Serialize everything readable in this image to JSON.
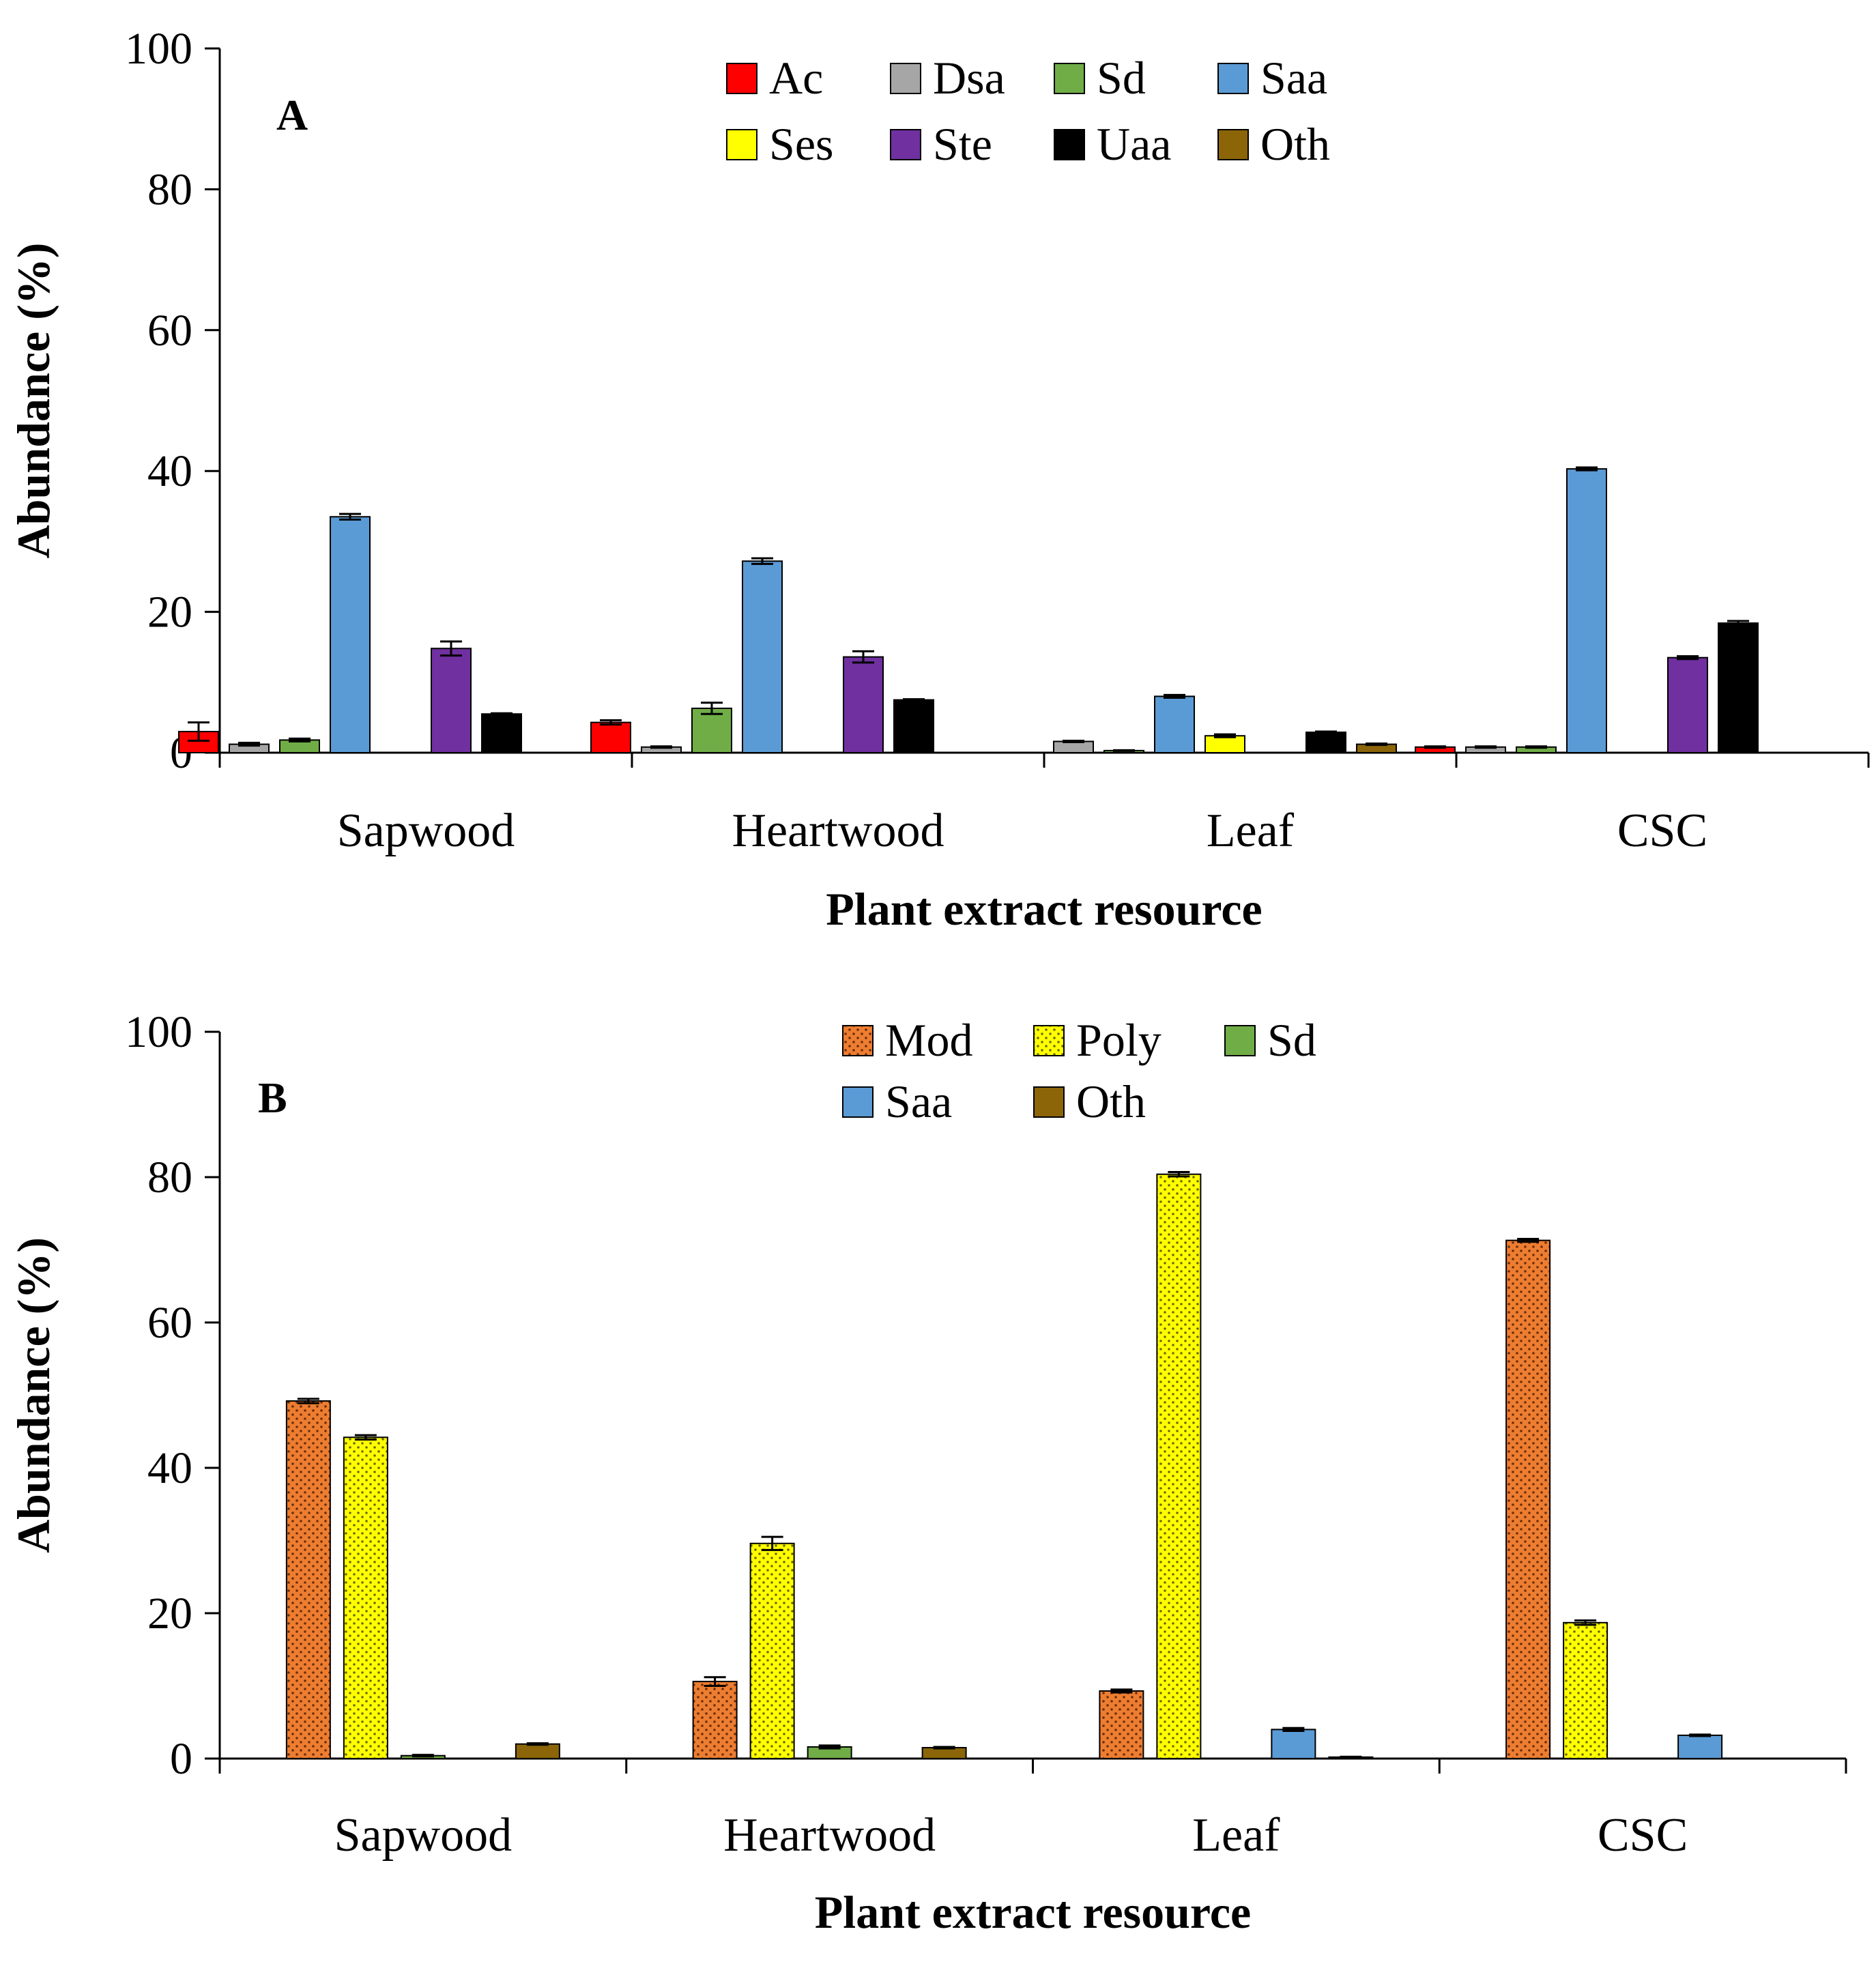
{
  "chart_data": [
    {
      "type": "bar",
      "panel_label": "A",
      "categories": [
        "Sapwood",
        "Heartwood",
        "Leaf",
        "CSC"
      ],
      "xlabel": "Plant extract resource",
      "ylabel": "Abundance (%)",
      "ylim": [
        0,
        100
      ],
      "yticks": [
        0,
        20,
        40,
        60,
        80,
        100
      ],
      "legend_position": "top-center",
      "series": [
        {
          "name": "Ac",
          "color": "#ff0000",
          "pattern": "solid",
          "values": [
            3.0,
            4.3,
            0,
            0.8
          ],
          "errors": [
            1.3,
            0.3,
            0,
            0.1
          ]
        },
        {
          "name": "Dsa",
          "color": "#a6a6a6",
          "pattern": "solid",
          "values": [
            1.2,
            0.8,
            1.6,
            0.8
          ],
          "errors": [
            0.2,
            0.1,
            0.1,
            0.1
          ]
        },
        {
          "name": "Sd",
          "color": "#70ad47",
          "pattern": "solid",
          "values": [
            1.8,
            6.3,
            0.3,
            0.8
          ],
          "errors": [
            0.2,
            0.8,
            0.05,
            0.1
          ]
        },
        {
          "name": "Saa",
          "color": "#5b9bd5",
          "pattern": "solid",
          "values": [
            33.5,
            27.2,
            8.0,
            40.3
          ],
          "errors": [
            0.4,
            0.4,
            0.2,
            0.2
          ]
        },
        {
          "name": "Ses",
          "color": "#ffff00",
          "pattern": "solid",
          "values": [
            0,
            0,
            2.4,
            0
          ],
          "errors": [
            0,
            0,
            0.2,
            0
          ]
        },
        {
          "name": "Ste",
          "color": "#7030a0",
          "pattern": "solid",
          "values": [
            14.8,
            13.6,
            0,
            13.5
          ],
          "errors": [
            1.0,
            0.8,
            0,
            0.2
          ]
        },
        {
          "name": "Uaa",
          "color": "#000000",
          "pattern": "solid",
          "values": [
            5.5,
            7.5,
            2.9,
            18.4
          ],
          "errors": [
            0.1,
            0.1,
            0.1,
            0.3
          ]
        },
        {
          "name": "Oth",
          "color": "#8b6508",
          "pattern": "solid",
          "values": [
            0,
            0,
            1.2,
            0
          ],
          "errors": [
            0,
            0,
            0.1,
            0
          ]
        }
      ]
    },
    {
      "type": "bar",
      "panel_label": "B",
      "categories": [
        "Sapwood",
        "Heartwood",
        "Leaf",
        "CSC"
      ],
      "xlabel": "Plant extract resource",
      "ylabel": "Abundance (%)",
      "ylim": [
        0,
        100
      ],
      "yticks": [
        0,
        20,
        40,
        60,
        80,
        100
      ],
      "legend_position": "top-center",
      "series": [
        {
          "name": "Mod",
          "color": "#ed7d31",
          "pattern": "dots",
          "values": [
            49.2,
            10.6,
            9.3,
            71.3
          ],
          "errors": [
            0.3,
            0.6,
            0.2,
            0.2
          ]
        },
        {
          "name": "Poly",
          "color": "#ffff00",
          "pattern": "dots",
          "values": [
            44.2,
            29.6,
            80.4,
            18.7
          ],
          "errors": [
            0.3,
            0.9,
            0.3,
            0.3
          ]
        },
        {
          "name": "Sd",
          "color": "#70ad47",
          "pattern": "solid",
          "values": [
            0.4,
            1.6,
            0,
            0
          ],
          "errors": [
            0.1,
            0.2,
            0,
            0
          ]
        },
        {
          "name": "Saa",
          "color": "#5b9bd5",
          "pattern": "solid",
          "values": [
            0,
            0,
            4.0,
            3.2
          ],
          "errors": [
            0,
            0,
            0.2,
            0.1
          ]
        },
        {
          "name": "Oth",
          "color": "#8b6508",
          "pattern": "solid",
          "values": [
            2.0,
            1.5,
            0.2,
            0
          ],
          "errors": [
            0.1,
            0.1,
            0.05,
            0
          ]
        }
      ]
    }
  ]
}
